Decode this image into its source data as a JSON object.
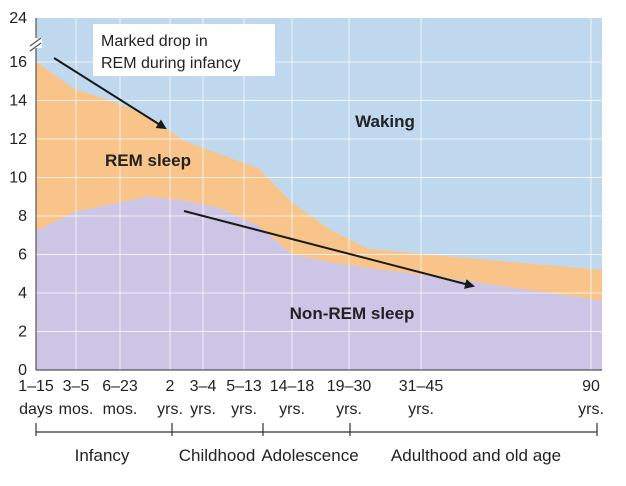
{
  "chart_data": {
    "type": "area",
    "y_ticks": [
      0,
      2,
      4,
      6,
      8,
      10,
      12,
      14,
      16,
      24
    ],
    "ylim": [
      0,
      24
    ],
    "axis_break_at": 16,
    "x_ticks": [
      {
        "line1": "1–15",
        "line2": "days"
      },
      {
        "line1": "3–5",
        "line2": "mos."
      },
      {
        "line1": "6–23",
        "line2": "mos."
      },
      {
        "line1": "2",
        "line2": "yrs."
      },
      {
        "line1": "3–4",
        "line2": "yrs."
      },
      {
        "line1": "5–13",
        "line2": "yrs."
      },
      {
        "line1": "14–18",
        "line2": "yrs."
      },
      {
        "line1": "19–30",
        "line2": "yrs."
      },
      {
        "line1": "31–45",
        "line2": "yrs."
      },
      {
        "line1": "90",
        "line2": "yrs."
      }
    ],
    "groups": [
      "Infancy",
      "Childhood",
      "Adolescence",
      "Adulthood and old age"
    ],
    "series": [
      {
        "name": "Non-REM sleep",
        "color": "#cdc5e6",
        "values": [
          7.2,
          8.2,
          8.6,
          9.0,
          8.8,
          8.4,
          7.5,
          6.0,
          5.6,
          5.3,
          4.6,
          3.6
        ]
      },
      {
        "name": "REM sleep",
        "color": "#f8c48a",
        "values": [
          16.1,
          14.6,
          14.0,
          13.2,
          11.9,
          11.2,
          10.5,
          8.7,
          7.3,
          6.3,
          5.8,
          5.2
        ]
      },
      {
        "name": "Waking",
        "color": "#c0d8ee",
        "values": [
          24,
          24,
          24,
          24,
          24,
          24,
          24,
          24,
          24,
          24,
          24,
          24
        ]
      }
    ],
    "annotations": [
      {
        "line1": "Marked drop in",
        "line2": "REM during infancy"
      }
    ]
  }
}
